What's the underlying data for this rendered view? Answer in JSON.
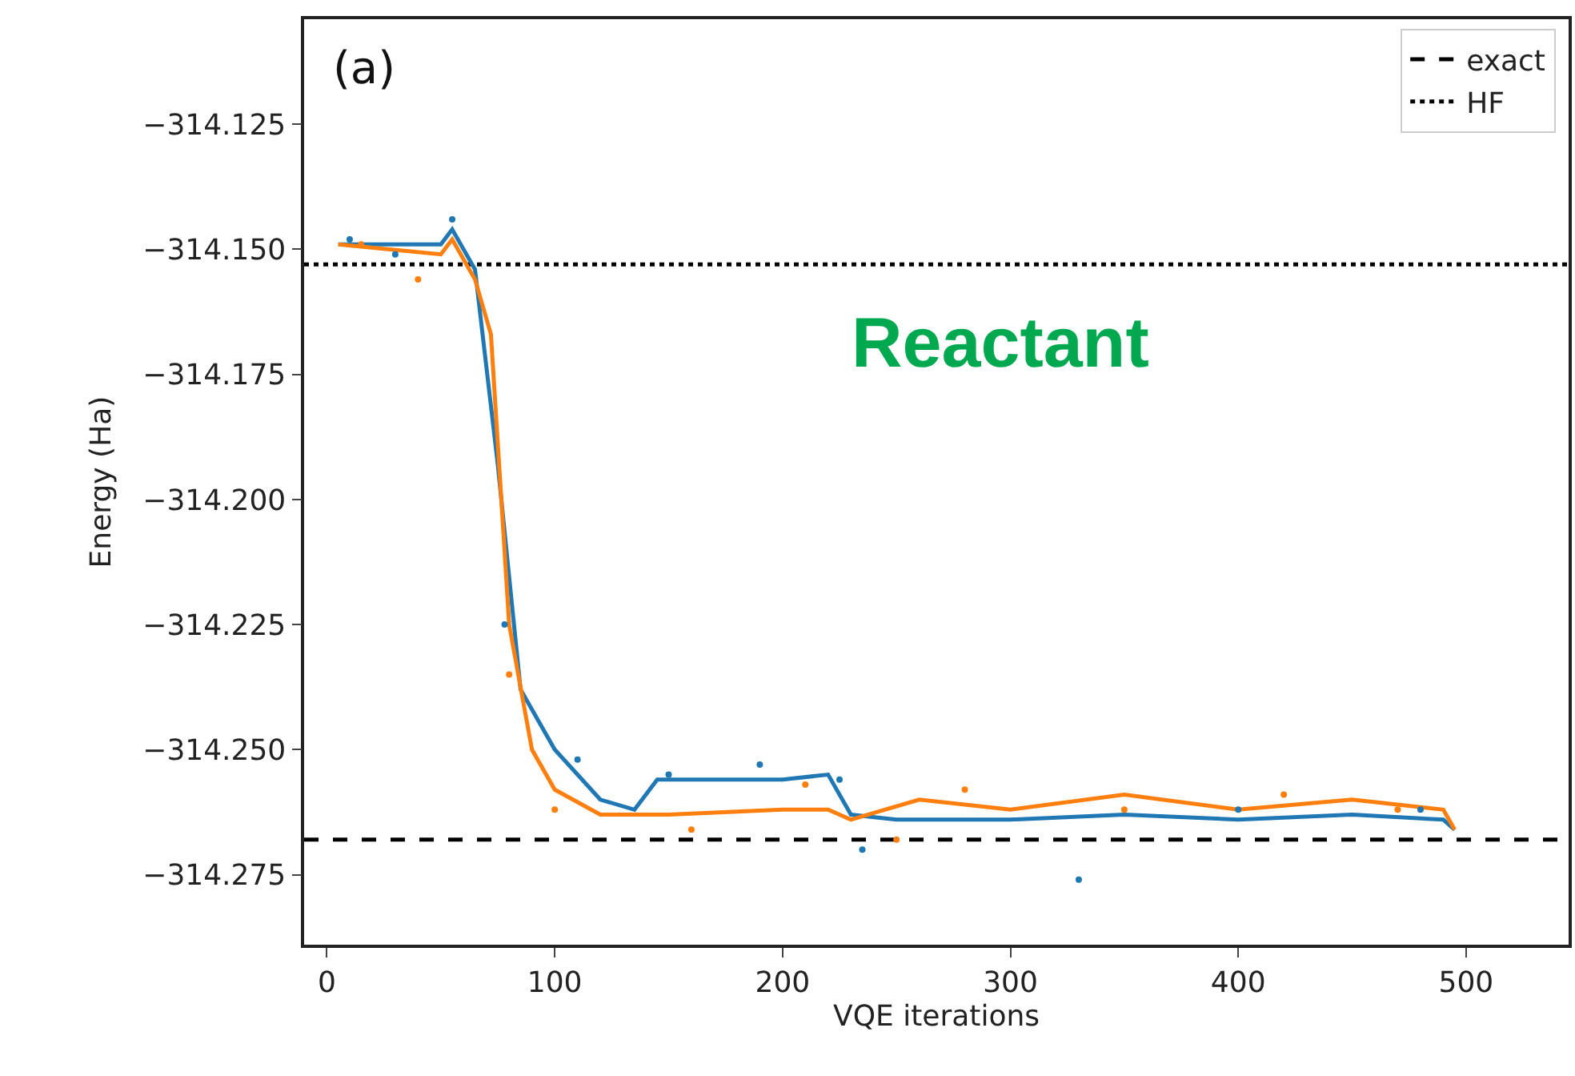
{
  "chart_data": {
    "type": "line",
    "xlabel": "VQE iterations",
    "ylabel": "Energy (Ha)",
    "xlim": [
      -10,
      545
    ],
    "xticks": [
      0,
      100,
      200,
      300,
      400,
      500
    ],
    "ylim": [
      -314.289,
      -314.104
    ],
    "yticks": [
      -314.125,
      {
        "value": -314.15,
        "label": "−314.150"
      },
      -314.175,
      {
        "value": -314.2,
        "label": "−314.200"
      },
      -314.225,
      {
        "value": -314.25,
        "label": "−314.250"
      },
      -314.275
    ],
    "grid": false,
    "legend": "top right",
    "marker": "none",
    "line_style": "solid",
    "annotations": [
      "(a)",
      "Reactant"
    ],
    "ref_lines": [
      {
        "axis": "y",
        "value": -314.268,
        "label": "exact",
        "color": "#000000",
        "line_style": "dashed"
      },
      {
        "axis": "y",
        "value": -314.153,
        "label": "HF",
        "color": "#000000",
        "line_style": "dotted"
      }
    ],
    "series": [
      {
        "color": "#1f77b4",
        "x": [
          5,
          50,
          55,
          65,
          75,
          85,
          100,
          120,
          135,
          145,
          200,
          220,
          230,
          250,
          300,
          350,
          400,
          450,
          490,
          495
        ],
        "values": [
          -314.149,
          -314.149,
          -314.146,
          -314.154,
          -314.193,
          -314.238,
          -314.25,
          -314.26,
          -314.262,
          -314.256,
          -314.256,
          -314.255,
          -314.263,
          -314.264,
          -314.264,
          -314.263,
          -314.264,
          -314.263,
          -314.264,
          -314.266
        ]
      },
      {
        "color": "#ff7f0e",
        "x": [
          5,
          50,
          55,
          65,
          72,
          80,
          90,
          100,
          120,
          150,
          200,
          220,
          230,
          260,
          300,
          350,
          400,
          450,
          490,
          495
        ],
        "values": [
          -314.149,
          -314.151,
          -314.148,
          -314.156,
          -314.167,
          -314.225,
          -314.25,
          -314.258,
          -314.263,
          -314.263,
          -314.262,
          -314.262,
          -314.264,
          -314.26,
          -314.262,
          -314.259,
          -314.262,
          -314.26,
          -314.262,
          -314.266
        ]
      },
      {
        "type": "scatter",
        "marker": "circle",
        "color": "#1f77b4",
        "x": [
          10,
          30,
          55,
          78,
          110,
          150,
          190,
          225,
          235,
          330,
          400,
          480
        ],
        "values": [
          -314.148,
          -314.151,
          -314.144,
          -314.225,
          -314.252,
          -314.255,
          -314.253,
          -314.256,
          -314.27,
          -314.276,
          -314.262,
          -314.262
        ]
      },
      {
        "type": "scatter",
        "marker": "circle",
        "color": "#ff7f0e",
        "x": [
          15,
          40,
          80,
          100,
          160,
          210,
          250,
          280,
          350,
          420,
          470
        ],
        "values": [
          -314.149,
          -314.156,
          -314.235,
          -314.262,
          -314.266,
          -314.257,
          -314.268,
          -314.258,
          -314.262,
          -314.259,
          -314.262
        ]
      }
    ]
  }
}
